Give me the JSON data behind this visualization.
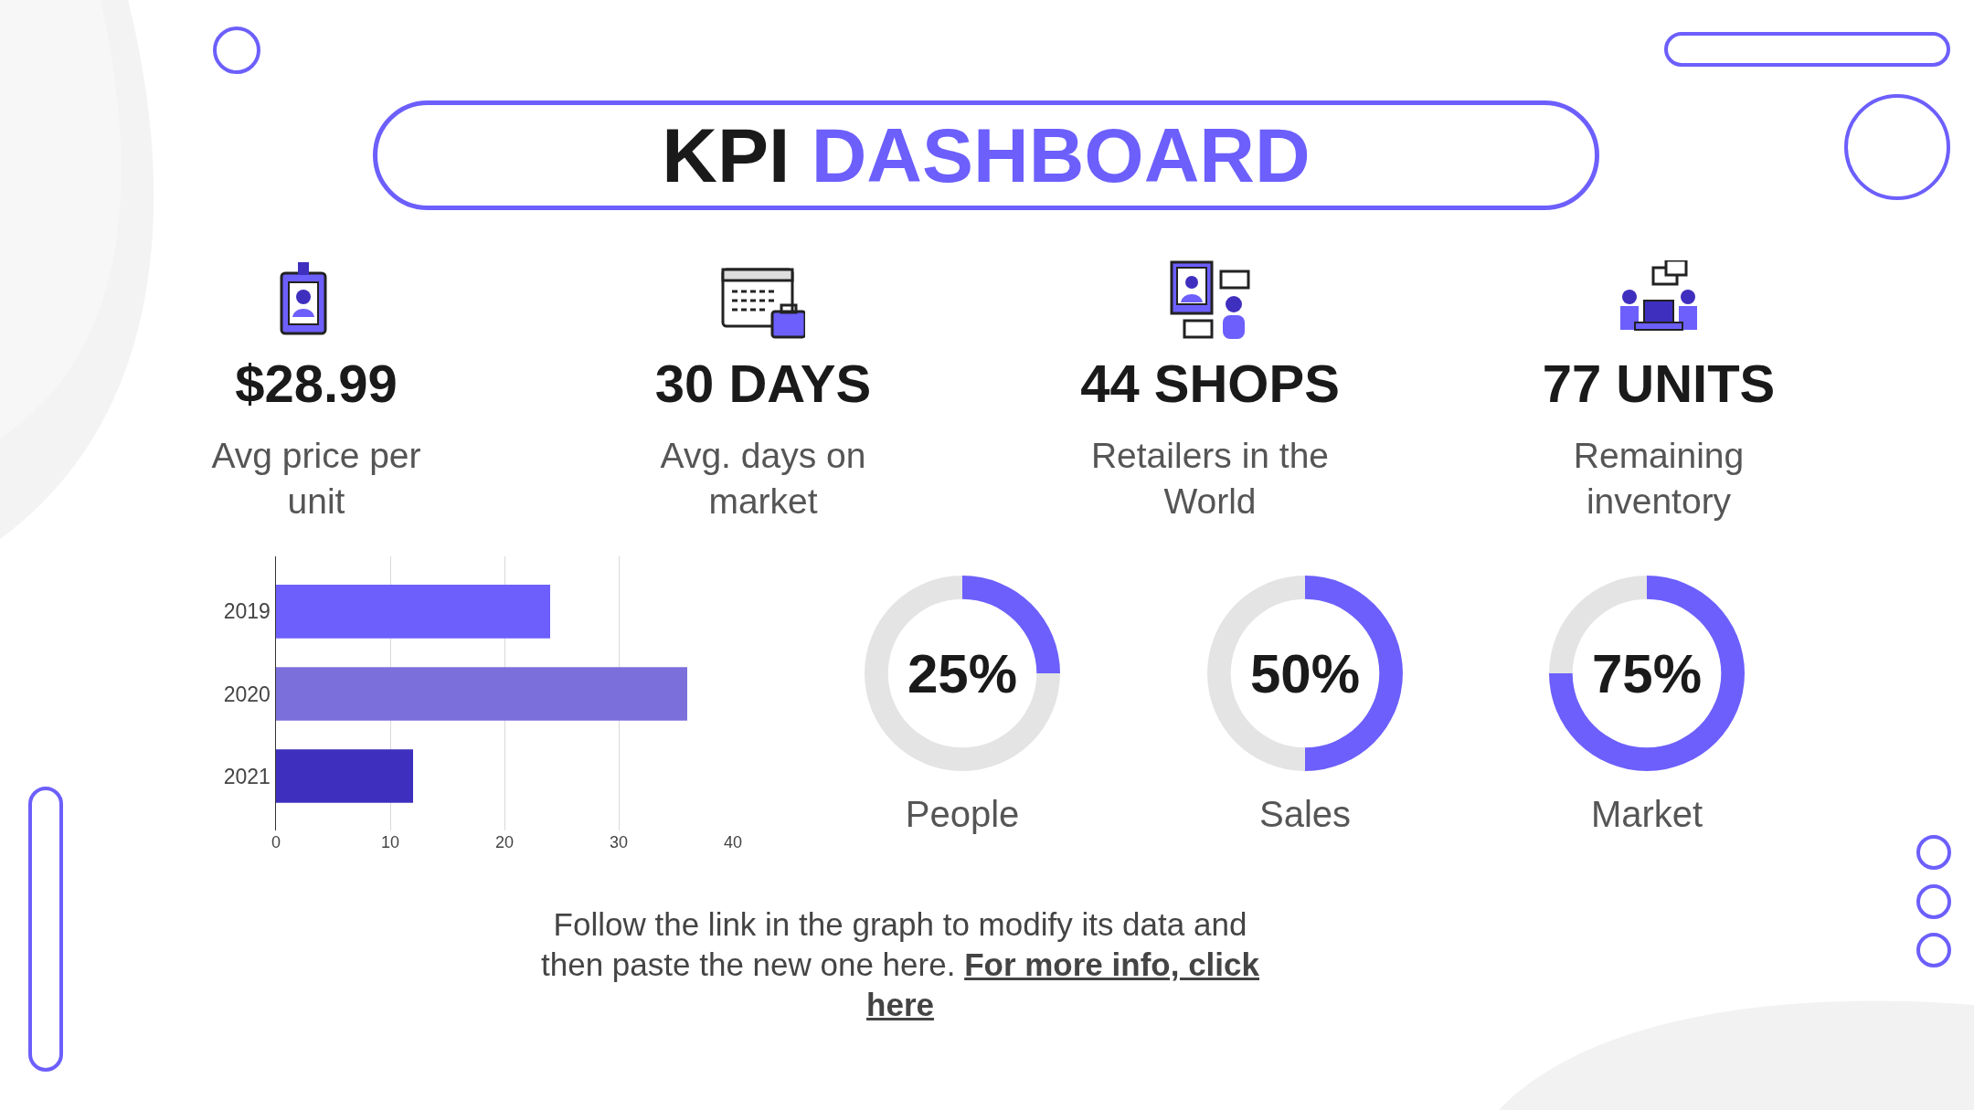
{
  "chart_data": [
    {
      "type": "other",
      "title": "KPI DASHBOARD",
      "annotations": [
        "$28.99",
        "Avg price per unit",
        "30 DAYS",
        "Avg. days on market",
        "44 SHOPS",
        "Retailers in the World",
        "77 UNITS",
        "Remaining inventory",
        "Follow the link in the graph to modify its data and then paste the new one here.",
        "For more info, click here"
      ]
    },
    {
      "type": "bar",
      "orientation": "horizontal",
      "categories": [
        "2019",
        "2020",
        "2021"
      ],
      "values": [
        24,
        36,
        12
      ],
      "colors": [
        "#6c5ffc",
        "#7b6fdc",
        "#3f2fbf"
      ],
      "xlim": [
        0,
        40
      ],
      "xticks": [
        0,
        10,
        20,
        30,
        40
      ],
      "grid": "x",
      "legend": false
    },
    {
      "type": "donut",
      "title": "People",
      "categories": [
        null,
        null
      ],
      "values": [
        25,
        75
      ],
      "colors": [
        "#6c5ffc",
        "#e4e4e4"
      ],
      "annotations": [
        "25%"
      ],
      "legend": false
    },
    {
      "type": "donut",
      "title": "Sales",
      "categories": [
        null,
        null
      ],
      "values": [
        50,
        50
      ],
      "colors": [
        "#6c5ffc",
        "#e4e4e4"
      ],
      "annotations": [
        "50%"
      ],
      "legend": false
    },
    {
      "type": "donut",
      "title": "Market",
      "categories": [
        null,
        null
      ],
      "values": [
        75,
        25
      ],
      "colors": [
        "#6c5ffc",
        "#e4e4e4"
      ],
      "annotations": [
        "75%"
      ],
      "legend": false
    }
  ]
}
